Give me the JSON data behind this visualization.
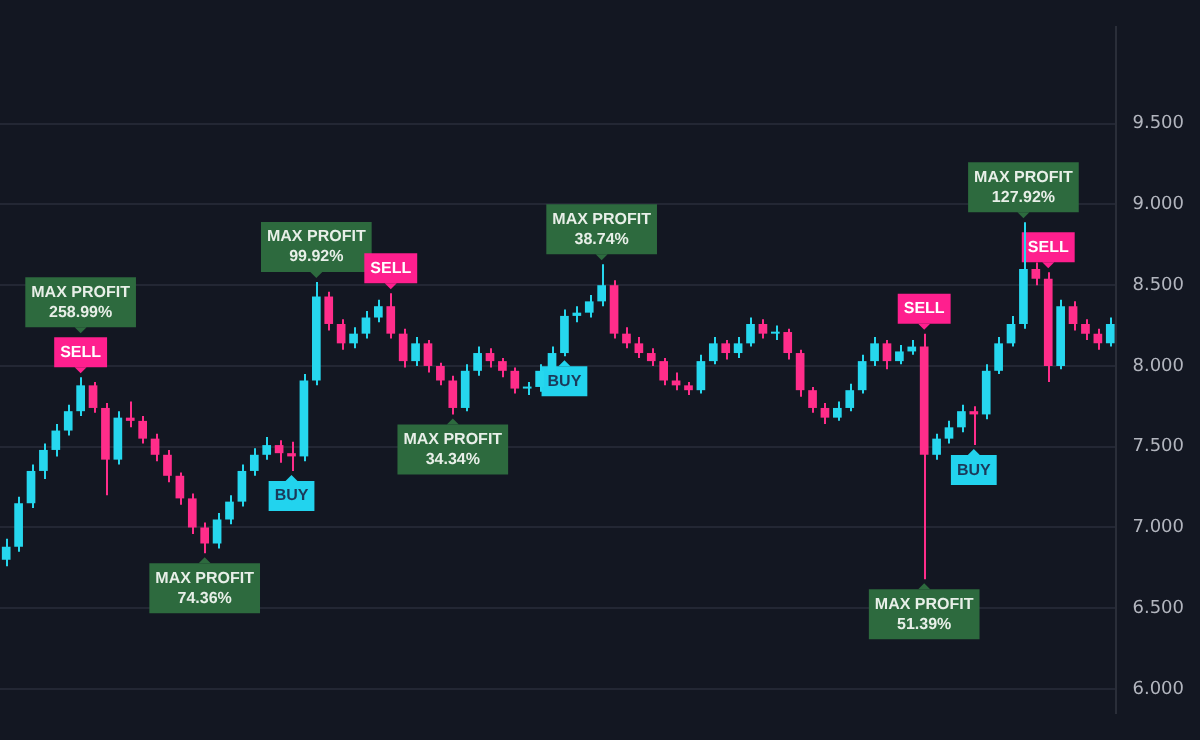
{
  "chart_data": {
    "type": "candlestick",
    "categories": [
      null,
      null,
      null,
      null,
      null,
      null,
      null,
      null,
      null,
      null,
      null,
      null,
      null,
      null,
      null,
      null,
      null,
      null,
      null,
      null,
      null,
      null,
      null,
      null,
      null,
      null,
      null,
      null,
      null,
      null,
      null,
      null,
      null,
      null,
      null,
      null,
      null,
      null,
      null,
      null,
      null,
      null,
      null,
      null,
      null,
      null,
      null,
      null,
      null,
      null,
      null,
      null,
      null,
      null,
      null,
      null,
      null,
      null,
      null,
      null,
      null,
      null,
      null,
      null,
      null,
      null,
      null,
      null,
      null,
      null,
      null,
      null,
      null,
      null,
      null,
      null,
      null,
      null,
      null,
      null,
      null,
      null,
      null,
      null,
      null,
      null,
      null,
      null,
      null,
      null
    ],
    "ohlc": [
      [
        6.8,
        6.93,
        6.76,
        6.88
      ],
      [
        6.88,
        7.19,
        6.85,
        7.15
      ],
      [
        7.15,
        7.39,
        7.12,
        7.35
      ],
      [
        7.35,
        7.52,
        7.3,
        7.48
      ],
      [
        7.48,
        7.64,
        7.44,
        7.6
      ],
      [
        7.6,
        7.76,
        7.57,
        7.72
      ],
      [
        7.72,
        7.93,
        7.69,
        7.88
      ],
      [
        7.88,
        7.9,
        7.71,
        7.74
      ],
      [
        7.74,
        7.77,
        7.2,
        7.42
      ],
      [
        7.42,
        7.72,
        7.39,
        7.68
      ],
      [
        7.68,
        7.78,
        7.62,
        7.66
      ],
      [
        7.66,
        7.69,
        7.52,
        7.55
      ],
      [
        7.55,
        7.58,
        7.41,
        7.45
      ],
      [
        7.45,
        7.48,
        7.28,
        7.32
      ],
      [
        7.32,
        7.34,
        7.14,
        7.18
      ],
      [
        7.18,
        7.21,
        6.96,
        7.0
      ],
      [
        7.0,
        7.03,
        6.84,
        6.9
      ],
      [
        6.9,
        7.09,
        6.87,
        7.05
      ],
      [
        7.05,
        7.2,
        7.02,
        7.16
      ],
      [
        7.16,
        7.39,
        7.13,
        7.35
      ],
      [
        7.35,
        7.49,
        7.32,
        7.45
      ],
      [
        7.45,
        7.56,
        7.42,
        7.51
      ],
      [
        7.51,
        7.54,
        7.4,
        7.46
      ],
      [
        7.46,
        7.53,
        7.35,
        7.44
      ],
      [
        7.44,
        7.95,
        7.41,
        7.91
      ],
      [
        7.91,
        8.52,
        7.88,
        8.43
      ],
      [
        8.43,
        8.46,
        8.22,
        8.26
      ],
      [
        8.26,
        8.29,
        8.1,
        8.14
      ],
      [
        8.14,
        8.24,
        8.11,
        8.2
      ],
      [
        8.2,
        8.34,
        8.17,
        8.3
      ],
      [
        8.3,
        8.41,
        8.27,
        8.37
      ],
      [
        8.37,
        8.45,
        8.17,
        8.2
      ],
      [
        8.2,
        8.23,
        7.99,
        8.03
      ],
      [
        8.03,
        8.18,
        8.0,
        8.14
      ],
      [
        8.14,
        8.16,
        7.96,
        8.0
      ],
      [
        8.0,
        8.02,
        7.88,
        7.91
      ],
      [
        7.91,
        7.94,
        7.7,
        7.74
      ],
      [
        7.74,
        8.01,
        7.72,
        7.97
      ],
      [
        7.97,
        8.12,
        7.94,
        8.08
      ],
      [
        8.08,
        8.11,
        7.99,
        8.03
      ],
      [
        8.03,
        8.05,
        7.93,
        7.97
      ],
      [
        7.97,
        7.99,
        7.83,
        7.86
      ],
      [
        7.86,
        7.9,
        7.82,
        7.87
      ],
      [
        7.87,
        8.01,
        7.84,
        7.97
      ],
      [
        7.97,
        8.12,
        7.95,
        8.08
      ],
      [
        8.08,
        8.35,
        8.06,
        8.31
      ],
      [
        8.31,
        8.37,
        8.27,
        8.33
      ],
      [
        8.33,
        8.44,
        8.3,
        8.4
      ],
      [
        8.4,
        8.63,
        8.37,
        8.5
      ],
      [
        8.5,
        8.53,
        8.17,
        8.2
      ],
      [
        8.2,
        8.24,
        8.11,
        8.14
      ],
      [
        8.14,
        8.18,
        8.05,
        8.08
      ],
      [
        8.08,
        8.11,
        8.0,
        8.03
      ],
      [
        8.03,
        8.05,
        7.88,
        7.91
      ],
      [
        7.91,
        7.96,
        7.85,
        7.88
      ],
      [
        7.88,
        7.9,
        7.82,
        7.85
      ],
      [
        7.85,
        8.07,
        7.83,
        8.03
      ],
      [
        8.03,
        8.18,
        8.01,
        8.14
      ],
      [
        8.14,
        8.16,
        8.04,
        8.08
      ],
      [
        8.08,
        8.18,
        8.05,
        8.14
      ],
      [
        8.14,
        8.3,
        8.12,
        8.26
      ],
      [
        8.26,
        8.29,
        8.17,
        8.2
      ],
      [
        8.2,
        8.25,
        8.16,
        8.21
      ],
      [
        8.21,
        8.23,
        8.04,
        8.08
      ],
      [
        8.08,
        8.1,
        7.81,
        7.85
      ],
      [
        7.85,
        7.87,
        7.71,
        7.74
      ],
      [
        7.74,
        7.77,
        7.64,
        7.68
      ],
      [
        7.68,
        7.78,
        7.66,
        7.74
      ],
      [
        7.74,
        7.89,
        7.72,
        7.85
      ],
      [
        7.85,
        8.07,
        7.83,
        8.03
      ],
      [
        8.03,
        8.18,
        8.0,
        8.14
      ],
      [
        8.14,
        8.16,
        7.98,
        8.03
      ],
      [
        8.03,
        8.13,
        8.01,
        8.09
      ],
      [
        8.09,
        8.16,
        8.07,
        8.12
      ],
      [
        8.12,
        8.2,
        6.68,
        7.45
      ],
      [
        7.45,
        7.58,
        7.42,
        7.55
      ],
      [
        7.55,
        7.66,
        7.52,
        7.62
      ],
      [
        7.62,
        7.76,
        7.59,
        7.72
      ],
      [
        7.72,
        7.75,
        7.51,
        7.7
      ],
      [
        7.7,
        8.01,
        7.67,
        7.97
      ],
      [
        7.97,
        8.18,
        7.95,
        8.14
      ],
      [
        8.14,
        8.31,
        8.12,
        8.26
      ],
      [
        8.26,
        8.89,
        8.23,
        8.6
      ],
      [
        8.6,
        8.64,
        8.5,
        8.54
      ],
      [
        8.54,
        8.58,
        7.9,
        8.0
      ],
      [
        8.0,
        8.41,
        7.98,
        8.37
      ],
      [
        8.37,
        8.4,
        8.22,
        8.26
      ],
      [
        8.26,
        8.29,
        8.16,
        8.2
      ],
      [
        8.2,
        8.23,
        8.1,
        8.14
      ],
      [
        8.14,
        8.3,
        8.12,
        8.26
      ]
    ],
    "ylim": [
      5.85,
      10.1
    ],
    "yticks": [
      {
        "value": 6,
        "label": "6.000"
      },
      {
        "value": 6.5,
        "label": "6.500"
      },
      {
        "value": 7,
        "label": "7.000"
      },
      {
        "value": 7.5,
        "label": "7.500"
      },
      {
        "value": 8,
        "label": "8.000"
      },
      {
        "value": 8.5,
        "label": "8.500"
      },
      {
        "value": 9,
        "label": "9.000"
      },
      {
        "value": 9.5,
        "label": "9.500"
      }
    ],
    "grid": "y",
    "legend": false,
    "tick_labels": "y",
    "annotations": [
      {
        "text": "SELL",
        "y": 7.93
      },
      "MAX PROFIT\n258.99%",
      {
        "text": "MAX PROFIT\n74.36%",
        "y": 6.84
      },
      {
        "text": "BUY",
        "y": 7.35
      },
      {
        "text": "MAX PROFIT\n99.92%",
        "y": 8.52
      },
      {
        "text": "SELL",
        "y": 8.45
      },
      {
        "text": "MAX PROFIT\n34.34%",
        "y": 7.7
      },
      {
        "text": "BUY",
        "y": 8.06
      },
      {
        "text": "MAX PROFIT\n38.74%",
        "y": 8.63
      },
      {
        "text": "SELL",
        "y": 8.2
      },
      {
        "text": "MAX PROFIT\n51.39%",
        "y": 6.68
      },
      {
        "text": "BUY",
        "y": 7.51
      },
      {
        "text": "MAX PROFIT\n127.92%",
        "y": 8.89
      },
      {
        "text": "SELL",
        "y": 8.58
      }
    ]
  }
}
